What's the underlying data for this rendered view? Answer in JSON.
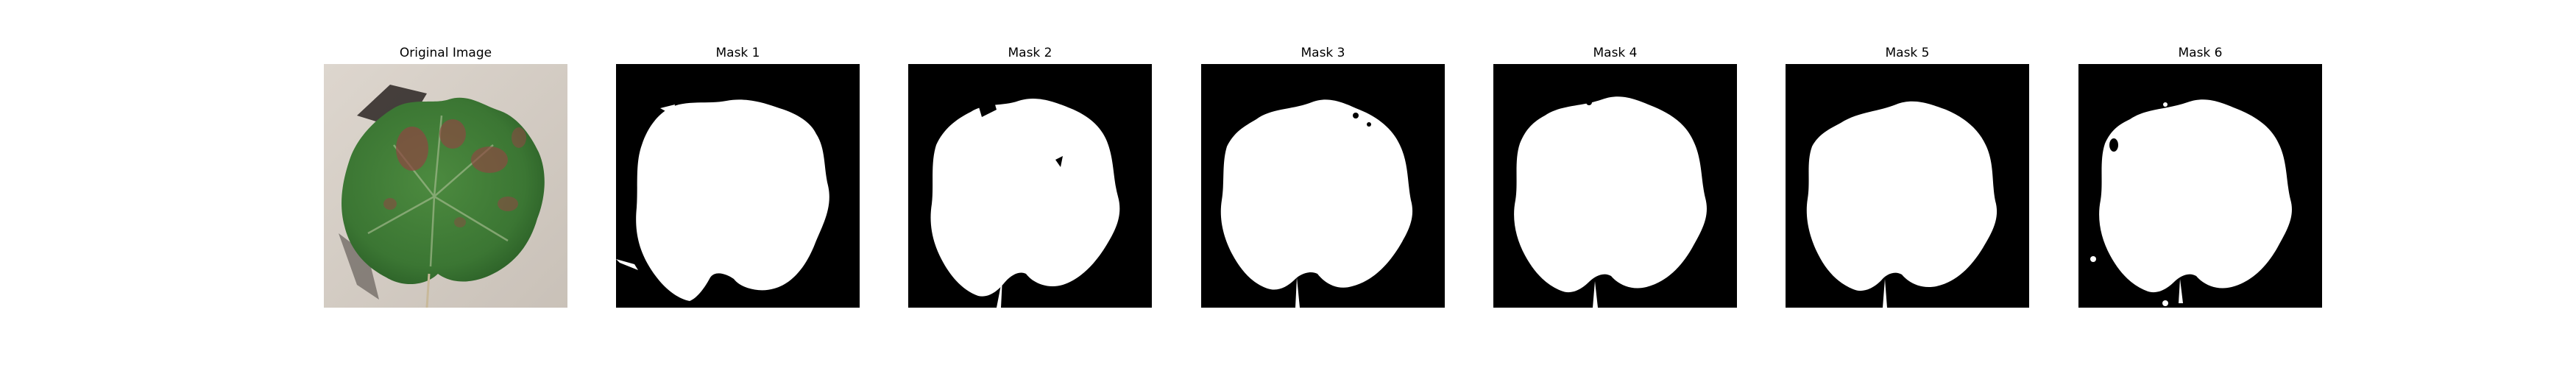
{
  "figure": {
    "panels": [
      {
        "title": "Original Image",
        "kind": "photo",
        "content": "grape-leaf-photo"
      },
      {
        "title": "Mask 1",
        "kind": "mask",
        "content": "leaf-mask"
      },
      {
        "title": "Mask 2",
        "kind": "mask",
        "content": "leaf-mask"
      },
      {
        "title": "Mask 3",
        "kind": "mask",
        "content": "leaf-mask"
      },
      {
        "title": "Mask 4",
        "kind": "mask",
        "content": "leaf-mask"
      },
      {
        "title": "Mask 5",
        "kind": "mask",
        "content": "leaf-mask"
      },
      {
        "title": "Mask 6",
        "kind": "mask",
        "content": "leaf-mask"
      }
    ],
    "colors": {
      "mask_background": "#000000",
      "mask_foreground": "#ffffff",
      "photo_background": "#d3cbc2",
      "leaf_green": "#3d7a35",
      "leaf_dark": "#1f4a1c",
      "lesion": "#8a4a42"
    }
  }
}
